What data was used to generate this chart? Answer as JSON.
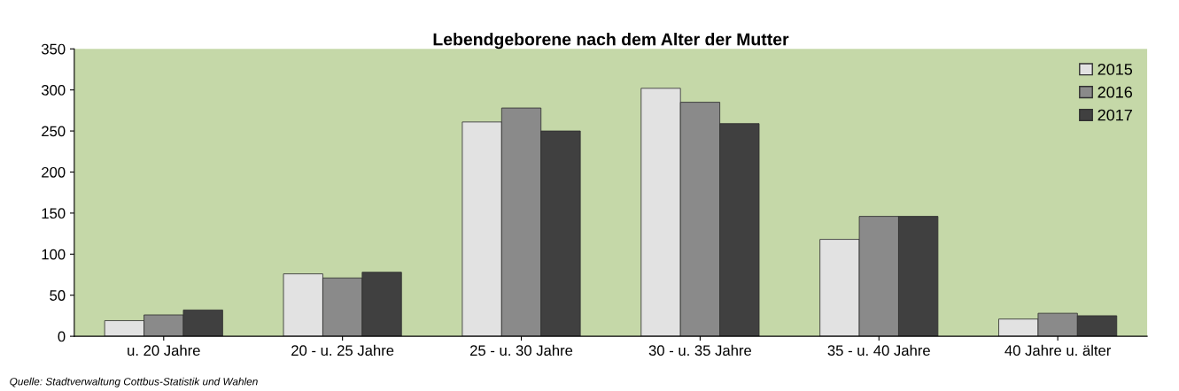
{
  "chart_data": {
    "type": "bar",
    "title": "Lebendgeborene nach dem Alter der Mutter",
    "categories": [
      "u. 20 Jahre",
      "20 - u. 25 Jahre",
      "25 - u. 30 Jahre",
      "30 - u. 35 Jahre",
      "35 - u. 40 Jahre",
      "40 Jahre u. älter"
    ],
    "series": [
      {
        "name": "2015",
        "color": "#e2e2e2",
        "values": [
          19,
          76,
          261,
          302,
          118,
          21
        ]
      },
      {
        "name": "2016",
        "color": "#8a8a8a",
        "values": [
          26,
          71,
          278,
          285,
          146,
          28
        ]
      },
      {
        "name": "2017",
        "color": "#404040",
        "values": [
          32,
          78,
          250,
          259,
          146,
          25
        ]
      }
    ],
    "ylim": [
      0,
      350
    ],
    "yticks": [
      0,
      50,
      100,
      150,
      200,
      250,
      300,
      350
    ],
    "grid": false,
    "legend": "top right",
    "annotations": [
      "Quelle: Stadtverwaltung Cottbus-Statistik und Wahlen"
    ]
  }
}
